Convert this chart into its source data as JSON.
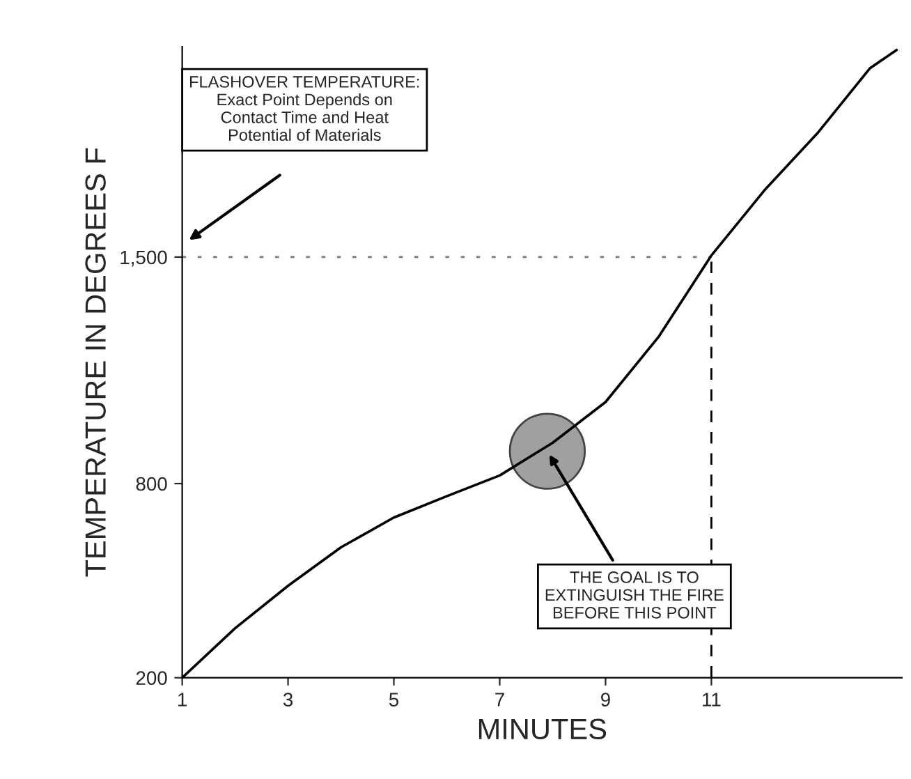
{
  "chart_data": {
    "type": "line",
    "xlabel": "MINUTES",
    "ylabel": "TEMPERATURE IN DEGREES F",
    "series": [
      {
        "color": "#000000",
        "x": [
          1,
          2,
          3,
          4,
          5,
          6,
          7,
          8,
          9,
          10,
          11,
          12,
          13,
          14,
          14.5
        ],
        "values": [
          200,
          353,
          484,
          603,
          695,
          761,
          825,
          926,
          1052,
          1253,
          1505,
          1706,
          1882,
          2084,
          2140
        ]
      },
      {
        "type": "scatter",
        "color": "#a0a0a0",
        "x": [
          7.9
        ],
        "values": [
          900
        ]
      }
    ],
    "xlim": [
      1,
      14.6
    ],
    "ylim": [
      200,
      2150
    ],
    "xticks": [
      1,
      3,
      5,
      7,
      9,
      11
    ],
    "yticks": [
      200,
      800,
      {
        "value": 1500,
        "label": "1,500"
      }
    ],
    "ref_lines": [
      {
        "axis": "y",
        "value": 1500,
        "line_style": "dotted",
        "color": "#777777"
      },
      {
        "axis": "x",
        "value": 11,
        "line_style": "dashed",
        "color": "#000000"
      }
    ],
    "annotations": [
      "FLASHOVER TEMPERATURE:\nExact Point Depends on\nContact Time and Heat\nPotential of Materials",
      {
        "text": "THE GOAL IS TO\nEXTINGUISH THE FIRE\nBEFORE THIS POINT",
        "x": 7.9,
        "y": 900
      }
    ],
    "grid": false,
    "legend": false
  }
}
